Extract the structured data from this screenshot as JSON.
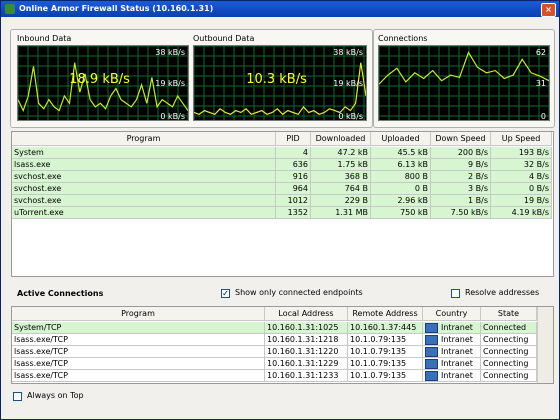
{
  "window": {
    "title": "Online Armor Firewall Status (10.160.1.31)"
  },
  "graphs": [
    {
      "label": "Inbound Data",
      "current": "18.9 kB/s",
      "color": "#c8e632",
      "ticks": [
        {
          "value": 38,
          "label": "38 kB/s"
        },
        {
          "value": 19,
          "label": "19 kB/s"
        },
        {
          "value": 0,
          "label": "0 kB/s"
        }
      ],
      "values": [
        10,
        4,
        12,
        28,
        8,
        5,
        10,
        6,
        4,
        12,
        8,
        30,
        14,
        24,
        10,
        6,
        8,
        5,
        12,
        16,
        10,
        8,
        6,
        10,
        18,
        8,
        22,
        6,
        10,
        8,
        6,
        12,
        8,
        4
      ]
    },
    {
      "label": "Outbound Data",
      "current": "10.3 kB/s",
      "color": "#e6e632",
      "ticks": [
        {
          "value": 38,
          "label": "38 kB/s"
        },
        {
          "value": 19,
          "label": "19 kB/s"
        },
        {
          "value": 0,
          "label": "0 kB/s"
        }
      ],
      "values": [
        3,
        2,
        4,
        3,
        2,
        5,
        3,
        2,
        4,
        3,
        5,
        2,
        3,
        4,
        2,
        3,
        5,
        2,
        4,
        3,
        2,
        6,
        3,
        4,
        2,
        3,
        5,
        4,
        3,
        6,
        4,
        8,
        30,
        12
      ]
    },
    {
      "label": "Connections",
      "color": "#c8e632",
      "ticks": [
        62,
        31,
        0
      ],
      "values": [
        30,
        38,
        44,
        32,
        40,
        35,
        42,
        33,
        38,
        36,
        58,
        45,
        40,
        42,
        35,
        38,
        52,
        40,
        37,
        33
      ]
    }
  ],
  "process_table": {
    "headers": [
      "Program",
      "PID",
      "Downloaded",
      "Uploaded",
      "Down Speed",
      "Up Speed"
    ],
    "rows": [
      [
        "System",
        "4",
        "47.2 kB",
        "45.5 kB",
        "200 B/s",
        "193 B/s"
      ],
      [
        "lsass.exe",
        "636",
        "1.75 kB",
        "6.13 kB",
        "9 B/s",
        "32 B/s"
      ],
      [
        "svchost.exe",
        "916",
        "368 B",
        "800 B",
        "2 B/s",
        "4 B/s"
      ],
      [
        "svchost.exe",
        "964",
        "764 B",
        "0 B",
        "3 B/s",
        "0 B/s"
      ],
      [
        "svchost.exe",
        "1012",
        "229 B",
        "2.96 kB",
        "1 B/s",
        "19 B/s"
      ],
      [
        "uTorrent.exe",
        "1352",
        "1.31 MB",
        "750 kB",
        "7.50 kB/s",
        "4.19 kB/s"
      ]
    ]
  },
  "active_connections": {
    "label": "Active Connections",
    "options": [
      {
        "label": "Show only connected endpoints",
        "checked": true
      },
      {
        "label": "Resolve addresses",
        "checked": false
      }
    ],
    "headers": [
      "Program",
      "Local Address",
      "Remote Address",
      "Country",
      "State"
    ],
    "rows": [
      [
        "System/TCP",
        "10.160.1.31:1025",
        "10.160.1.37:445",
        "Intranet",
        "Connected"
      ],
      [
        "lsass.exe/TCP",
        "10.160.1.31:1218",
        "10.1.0.79:135",
        "Intranet",
        "Connecting"
      ],
      [
        "lsass.exe/TCP",
        "10.160.1.31:1220",
        "10.1.0.79:135",
        "Intranet",
        "Connecting"
      ],
      [
        "lsass.exe/TCP",
        "10.160.1.31:1229",
        "10.1.0.79:135",
        "Intranet",
        "Connecting"
      ],
      [
        "lsass.exe/TCP",
        "10.160.1.31:1233",
        "10.1.0.79:135",
        "Intranet",
        "Connecting"
      ]
    ]
  },
  "always_on_top": {
    "label": "Always on Top",
    "checked": false
  }
}
